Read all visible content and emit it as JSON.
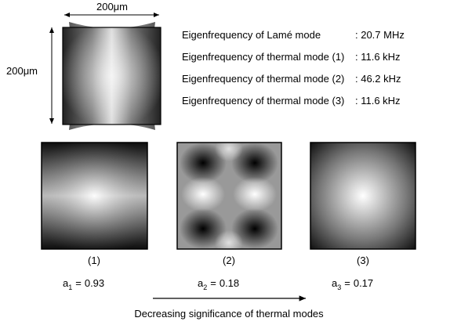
{
  "dimensions": {
    "width": "200μm",
    "height": "200μm"
  },
  "eigenfrequencies": [
    {
      "label": "Eigenfrequency of Lamé mode",
      "value": ": 20.7 MHz"
    },
    {
      "label": "Eigenfrequency of thermal mode (1)",
      "value": ": 11.6 kHz"
    },
    {
      "label": "Eigenfrequency of thermal mode (2)",
      "value": ": 46.2 kHz"
    },
    {
      "label": "Eigenfrequency of thermal mode (3)",
      "value": ": 11.6 kHz"
    }
  ],
  "modes": [
    {
      "label": "(1)",
      "symbol": "a",
      "index": "1",
      "operator": "=",
      "value": 0.93
    },
    {
      "label": "(2)",
      "symbol": "a",
      "index": "2",
      "operator": "=",
      "value": 0.18
    },
    {
      "label": "(3)",
      "symbol": "a",
      "index": "3",
      "operator": "=",
      "value": 0.17
    }
  ],
  "caption": "Decreasing significance of thermal modes"
}
